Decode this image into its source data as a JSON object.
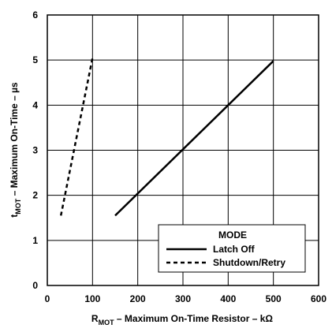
{
  "chart_data": {
    "type": "line",
    "xlabel_main": "R",
    "xlabel_sub": "MOT",
    "xlabel_rest": " – Maximum On-Time Resistor – kΩ",
    "ylabel_main": "t",
    "ylabel_sub": "MOT",
    "ylabel_rest": " – Maximum On-Time – µs",
    "xlim": [
      0,
      600
    ],
    "ylim": [
      0,
      6
    ],
    "x_ticks": [
      "0",
      "100",
      "200",
      "300",
      "400",
      "500",
      "600"
    ],
    "y_ticks": [
      "0",
      "1",
      "2",
      "3",
      "4",
      "5",
      "6"
    ],
    "grid": true,
    "legend": {
      "title": "MODE",
      "placement": "bottom-right",
      "entries": [
        "Latch Off",
        "Shutdown/Retry"
      ]
    },
    "series": [
      {
        "name": "Latch Off",
        "style": "solid",
        "x": [
          150,
          500
        ],
        "y": [
          1.55,
          4.98
        ]
      },
      {
        "name": "Shutdown/Retry",
        "style": "dashed",
        "x": [
          30,
          100
        ],
        "y": [
          1.55,
          5.05
        ]
      }
    ],
    "colors": {
      "line": "#000000",
      "grid": "#000000",
      "background": "#ffffff"
    }
  }
}
